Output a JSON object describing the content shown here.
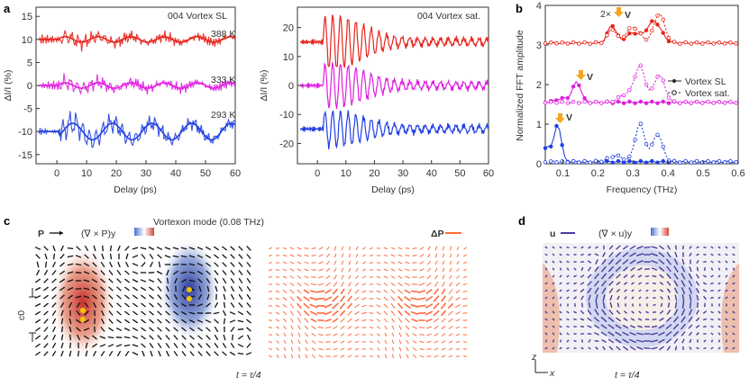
{
  "panel_labels": {
    "a": "a",
    "b": "b",
    "c": "c",
    "d": "d"
  },
  "panel_a_left": {
    "annotation": "004 Vortex SL",
    "xlabel": "Delay (ps)",
    "ylabel": "ΔI/I (%)",
    "xticks": [
      "0",
      "10",
      "20",
      "30",
      "40",
      "50",
      "60"
    ],
    "yticks": [
      "15",
      "10",
      "5",
      "0",
      "-5",
      "-10",
      "-15"
    ],
    "temps": [
      "388 K",
      "333 K",
      "293 K"
    ]
  },
  "panel_a_right": {
    "annotation": "004 Vortex sat.",
    "xlabel": "Delay (ps)",
    "ylabel": "ΔI/I (%)",
    "xticks": [
      "0",
      "10",
      "20",
      "30",
      "40",
      "50",
      "60"
    ],
    "yticks": [
      "20",
      "10",
      "0",
      "-10",
      "-20"
    ]
  },
  "panel_b": {
    "xlabel": "Frequency (THz)",
    "ylabel": "Normalized FFT amplitude",
    "xticks": [
      "0.1",
      "0.2",
      "0.3",
      "0.4",
      "0.5",
      "0.6"
    ],
    "yticks": [
      "0",
      "1",
      "2",
      "3",
      "4"
    ],
    "v_label": "V",
    "two_v_label": "2×",
    "legend": [
      "Vortex SL",
      "Vortex sat."
    ]
  },
  "panel_c": {
    "title": "Vortexon mode (0.08 THz)",
    "p_label": "P",
    "curl_label": "(∇ × P)y",
    "dp_label": "ΔP",
    "c0_label": "c0",
    "time_label": "t = τ/4"
  },
  "panel_d": {
    "u_label": "u",
    "curl_label": "(∇ × u)y",
    "z_label": "z",
    "x_label": "x",
    "time_label": "t = τ/4"
  },
  "colors": {
    "red": "#e8241c",
    "magenta": "#e01ee0",
    "blue": "#1f3fe0",
    "arrow_c": "#ff6a3d",
    "arrow_d": "#4a3aa0"
  },
  "chart_data": [
    {
      "type": "line",
      "title": "",
      "xlabel": "Delay (ps)",
      "ylabel": "ΔI/I (%)",
      "xlim": [
        -7,
        60
      ],
      "ylim": [
        -17,
        17
      ],
      "series": [
        {
          "offset": 10,
          "color": "red"
        },
        {
          "offset": 0,
          "color": "magenta"
        },
        {
          "offset": -10,
          "color": "blue"
        }
      ]
    },
    {
      "type": "line",
      "title": "",
      "xlabel": "Delay (ps)",
      "ylabel": "ΔI/I (%)",
      "xlim": [
        -7,
        60
      ],
      "ylim": [
        -27,
        27
      ],
      "series": [
        {
          "offset": 15,
          "color": "red"
        },
        {
          "offset": 0,
          "color": "magenta"
        },
        {
          "offset": -15,
          "color": "blue"
        }
      ]
    },
    {
      "type": "line",
      "title": "",
      "xlabel": "Frequency (THz)",
      "ylabel": "Normalized FFT amplitude",
      "xlim": [
        0.05,
        0.6
      ],
      "ylim": [
        0,
        4
      ],
      "series": [
        {
          "name": "Vortex SL"
        },
        {
          "name": "Vortex sat."
        }
      ]
    }
  ]
}
